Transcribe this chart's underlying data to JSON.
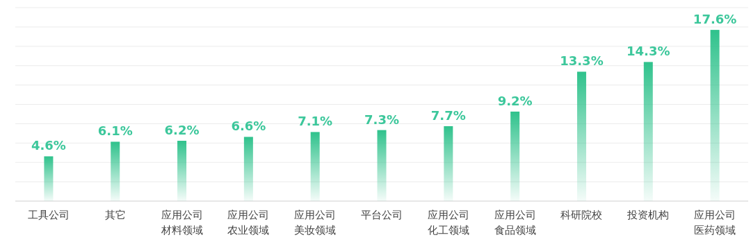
{
  "chart_data": {
    "type": "bar",
    "categories": [
      "工具公司",
      "其它",
      "应用公司材料领域",
      "应用公司农业领域",
      "应用公司美妆领域",
      "平台公司",
      "应用公司化工领域",
      "应用公司食品领域",
      "科研院校",
      "投资机构",
      "应用公司医药领域"
    ],
    "values": [
      4.6,
      6.1,
      6.2,
      6.6,
      7.1,
      7.3,
      7.7,
      9.2,
      13.3,
      14.3,
      17.6
    ],
    "value_labels": [
      "4.6%",
      "6.1%",
      "6.2%",
      "6.6%",
      "7.1%",
      "7.3%",
      "7.7%",
      "9.2%",
      "13.3%",
      "14.3%",
      "17.6%"
    ],
    "color": "#2fc28c",
    "grid": "y"
  }
}
